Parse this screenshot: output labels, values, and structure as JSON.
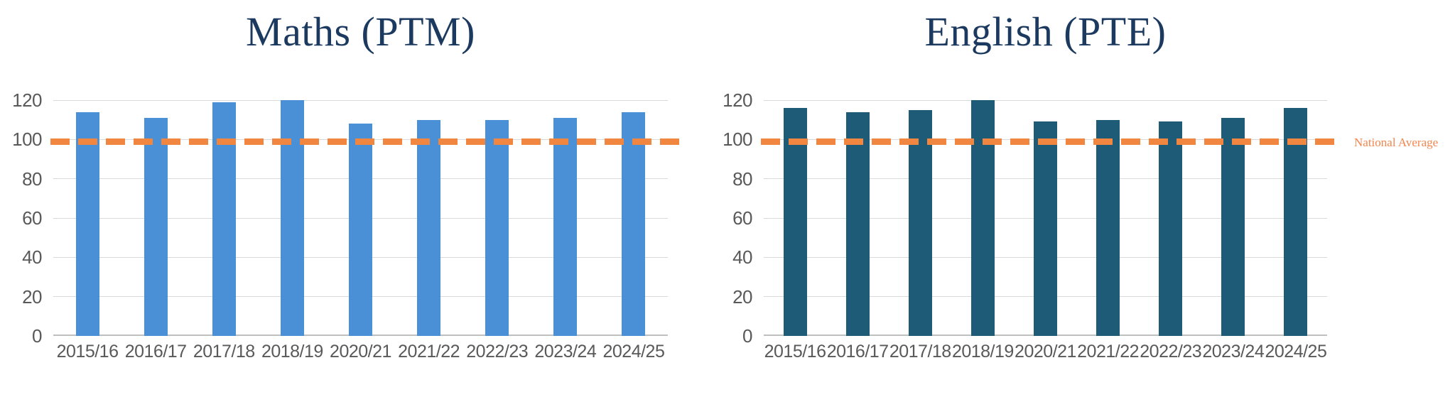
{
  "colors": {
    "background": "#FFFFFF",
    "title_navy": "#1C3A5F",
    "axis_label_gray": "#595959",
    "gridline_gray": "#D9D9D9",
    "baseline_gray": "#BFBFBF",
    "reference_orange": "#F0863F",
    "annotation_orange": "#F4854D",
    "maths_bar_blue": "#4A90D6",
    "english_bar_teal": "#1D5B77"
  },
  "chart_data": [
    {
      "type": "bar",
      "title": "Maths (PTM)",
      "bar_color": "#4A90D6",
      "categories": [
        "2015/16",
        "2016/17",
        "2017/18",
        "2018/19",
        "2020/21",
        "2021/22",
        "2022/23",
        "2023/24",
        "2024/25"
      ],
      "values": [
        114,
        111,
        119,
        120,
        108,
        110,
        110,
        111,
        114
      ],
      "xlabel": "",
      "ylabel": "",
      "ylim": [
        0,
        120
      ],
      "yticks": [
        0,
        20,
        40,
        60,
        80,
        100,
        120
      ],
      "grid": true,
      "legend": "none",
      "reference_line": {
        "label": "National Average",
        "value": 99,
        "color": "#F0863F",
        "style": "dashed"
      }
    },
    {
      "type": "bar",
      "title": "English (PTE)",
      "bar_color": "#1D5B77",
      "categories": [
        "2015/16",
        "2016/17",
        "2017/18",
        "2018/19",
        "2020/21",
        "2021/22",
        "2022/23",
        "2023/24",
        "2024/25"
      ],
      "values": [
        116,
        114,
        115,
        120,
        109,
        110,
        109,
        111,
        116
      ],
      "xlabel": "",
      "ylabel": "",
      "ylim": [
        0,
        120
      ],
      "yticks": [
        0,
        20,
        40,
        60,
        80,
        100,
        120
      ],
      "grid": true,
      "legend": "none",
      "reference_line": {
        "label": "National Average",
        "value": 99,
        "color": "#F0863F",
        "style": "dashed"
      }
    }
  ]
}
